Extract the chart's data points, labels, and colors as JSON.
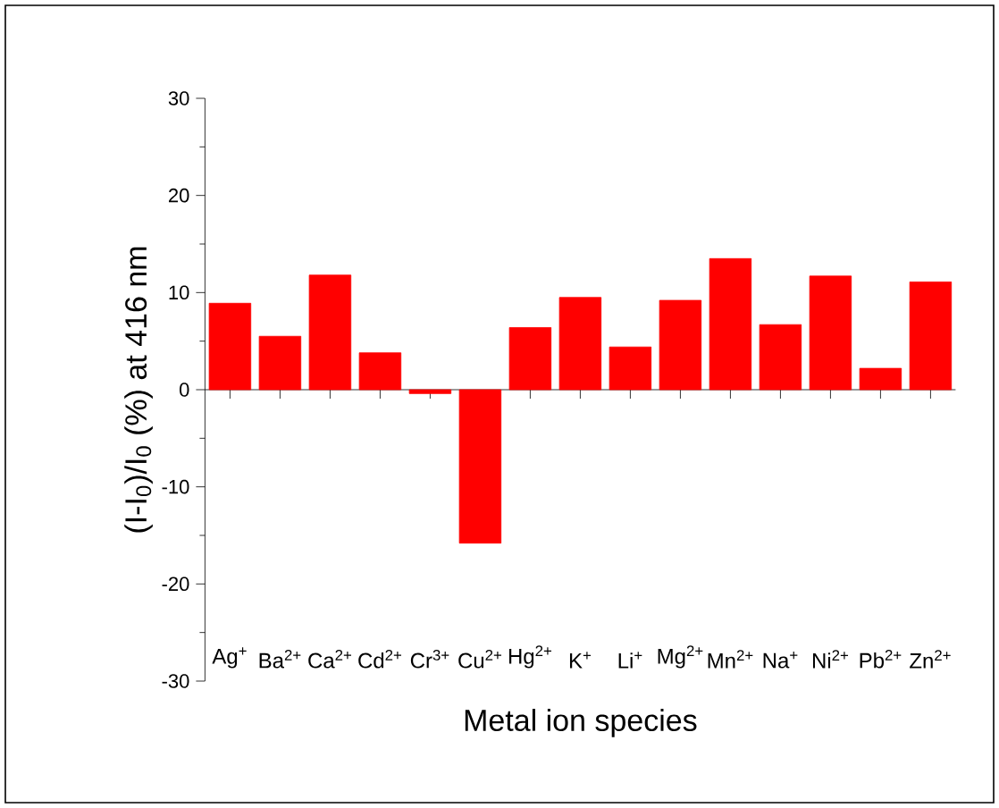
{
  "chart_data": {
    "type": "bar",
    "xlabel": "Metal ion species",
    "ylabel": "(I-I$_{0}$)/I$_{0}$ (%) at 416 nm",
    "categories": [
      "Ag$^{+}$",
      "Ba$^{2+}$",
      "Ca$^{2+}$",
      "Cd$^{2+}$",
      "Cr$^{3+}$",
      "Cu$^{2+}$",
      "Hg$^{2+}$",
      "K$^{+}$",
      "Li$^{+}$",
      "Mg$^{2+}$",
      "Mn$^{2+}$",
      "Na$^{+}$",
      "Ni$^{2+}$",
      "Pb$^{2+}$",
      "Zn$^{2+}$"
    ],
    "values": [
      8.9,
      5.5,
      11.8,
      3.8,
      -0.4,
      -15.8,
      6.4,
      9.5,
      4.4,
      9.2,
      13.5,
      6.7,
      11.7,
      2.2,
      11.1
    ],
    "color": "#ff0000",
    "ylim": [
      -30,
      30
    ],
    "yticks": [
      -30,
      -20,
      -10,
      0,
      10,
      20,
      30
    ]
  }
}
